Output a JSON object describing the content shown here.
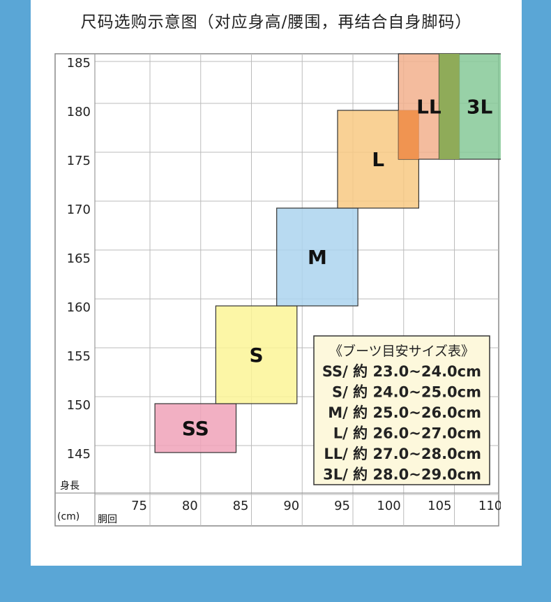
{
  "page": {
    "title": "尺码选购示意图（对应身高/腰围，再结合自身脚码）"
  },
  "chart_data": {
    "type": "range-boxes",
    "x": {
      "min": 75,
      "max": 110,
      "ticks": [
        75,
        80,
        85,
        90,
        95,
        100,
        105,
        110
      ]
    },
    "y": {
      "min": 145,
      "max": 185,
      "ticks": [
        145,
        150,
        155,
        160,
        165,
        170,
        175,
        180,
        185
      ]
    },
    "axis_labels": {
      "unit": "(cm)",
      "y": "身長",
      "x": "胴回"
    },
    "sizes": [
      {
        "name": "SS",
        "waist": [
          77,
          85
        ],
        "height": [
          145,
          150
        ],
        "color": "#f0a2b8"
      },
      {
        "name": "S",
        "waist": [
          83,
          91
        ],
        "height": [
          150,
          160
        ],
        "color": "#fbf497"
      },
      {
        "name": "M",
        "waist": [
          89,
          97
        ],
        "height": [
          160,
          170
        ],
        "color": "#acd3ef"
      },
      {
        "name": "L",
        "waist": [
          95,
          103
        ],
        "height": [
          170,
          180
        ],
        "color": "#f8c982"
      },
      {
        "name": "LL",
        "waist": [
          101,
          107
        ],
        "height": [
          175,
          185
        ],
        "color": "#f2b08d"
      },
      {
        "name": "3L",
        "waist": [
          105,
          113
        ],
        "height": [
          175,
          185
        ],
        "color": "#86c998"
      }
    ],
    "legend": {
      "title": "《ブーツ目安サイズ表》",
      "lines": [
        "SS/ 約 23.0~24.0cm",
        "S/ 約 24.0~25.0cm",
        "M/ 約 25.0~26.0cm",
        "L/ 約 26.0~27.0cm",
        "LL/ 約 27.0~28.0cm",
        "3L/ 約 28.0~29.0cm"
      ],
      "placement": "bottom-right",
      "background": "#fdf8dc"
    }
  }
}
